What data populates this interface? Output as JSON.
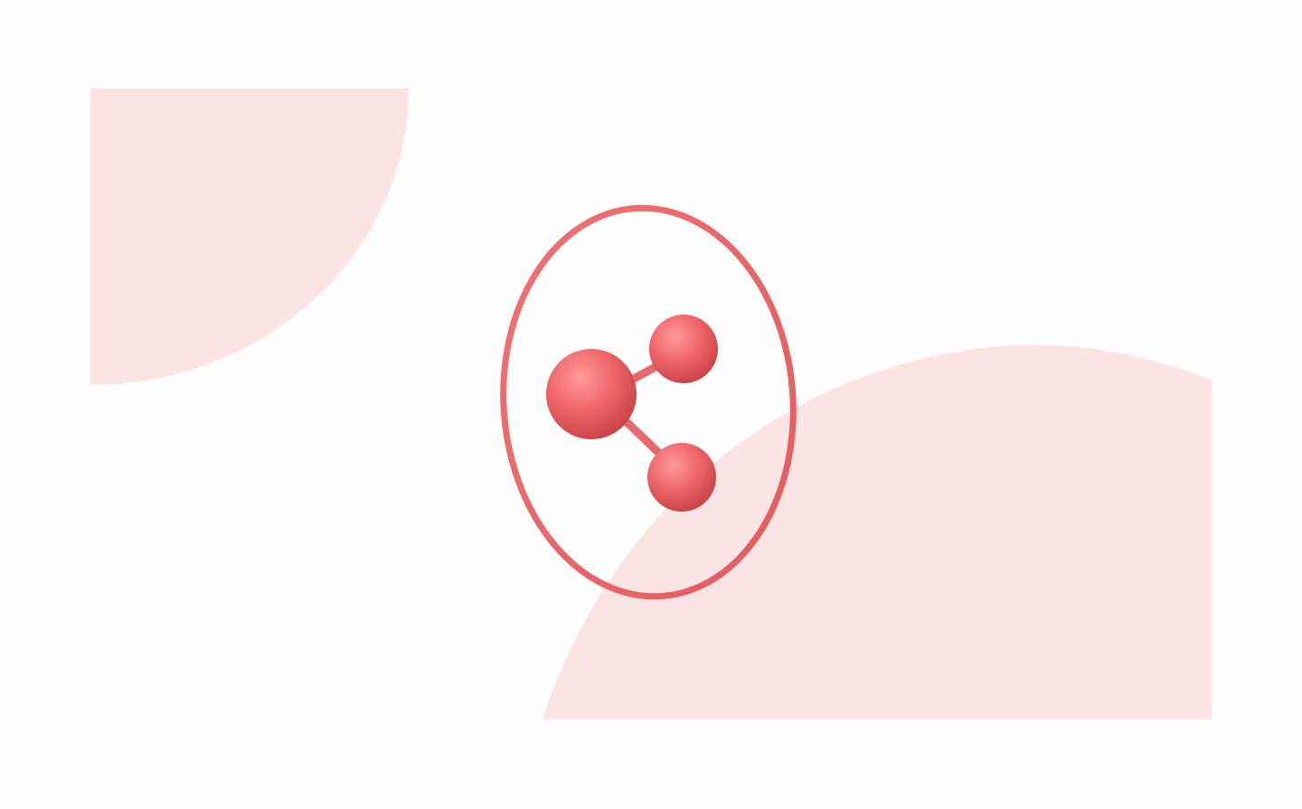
{
  "illustration": {
    "subject": "share-icon",
    "colors": {
      "background": "#fefefe",
      "blob": "#fde4e4",
      "accent": "#ed6466",
      "accent_light": "#ff9a9a",
      "accent_dark": "#c94448"
    }
  }
}
